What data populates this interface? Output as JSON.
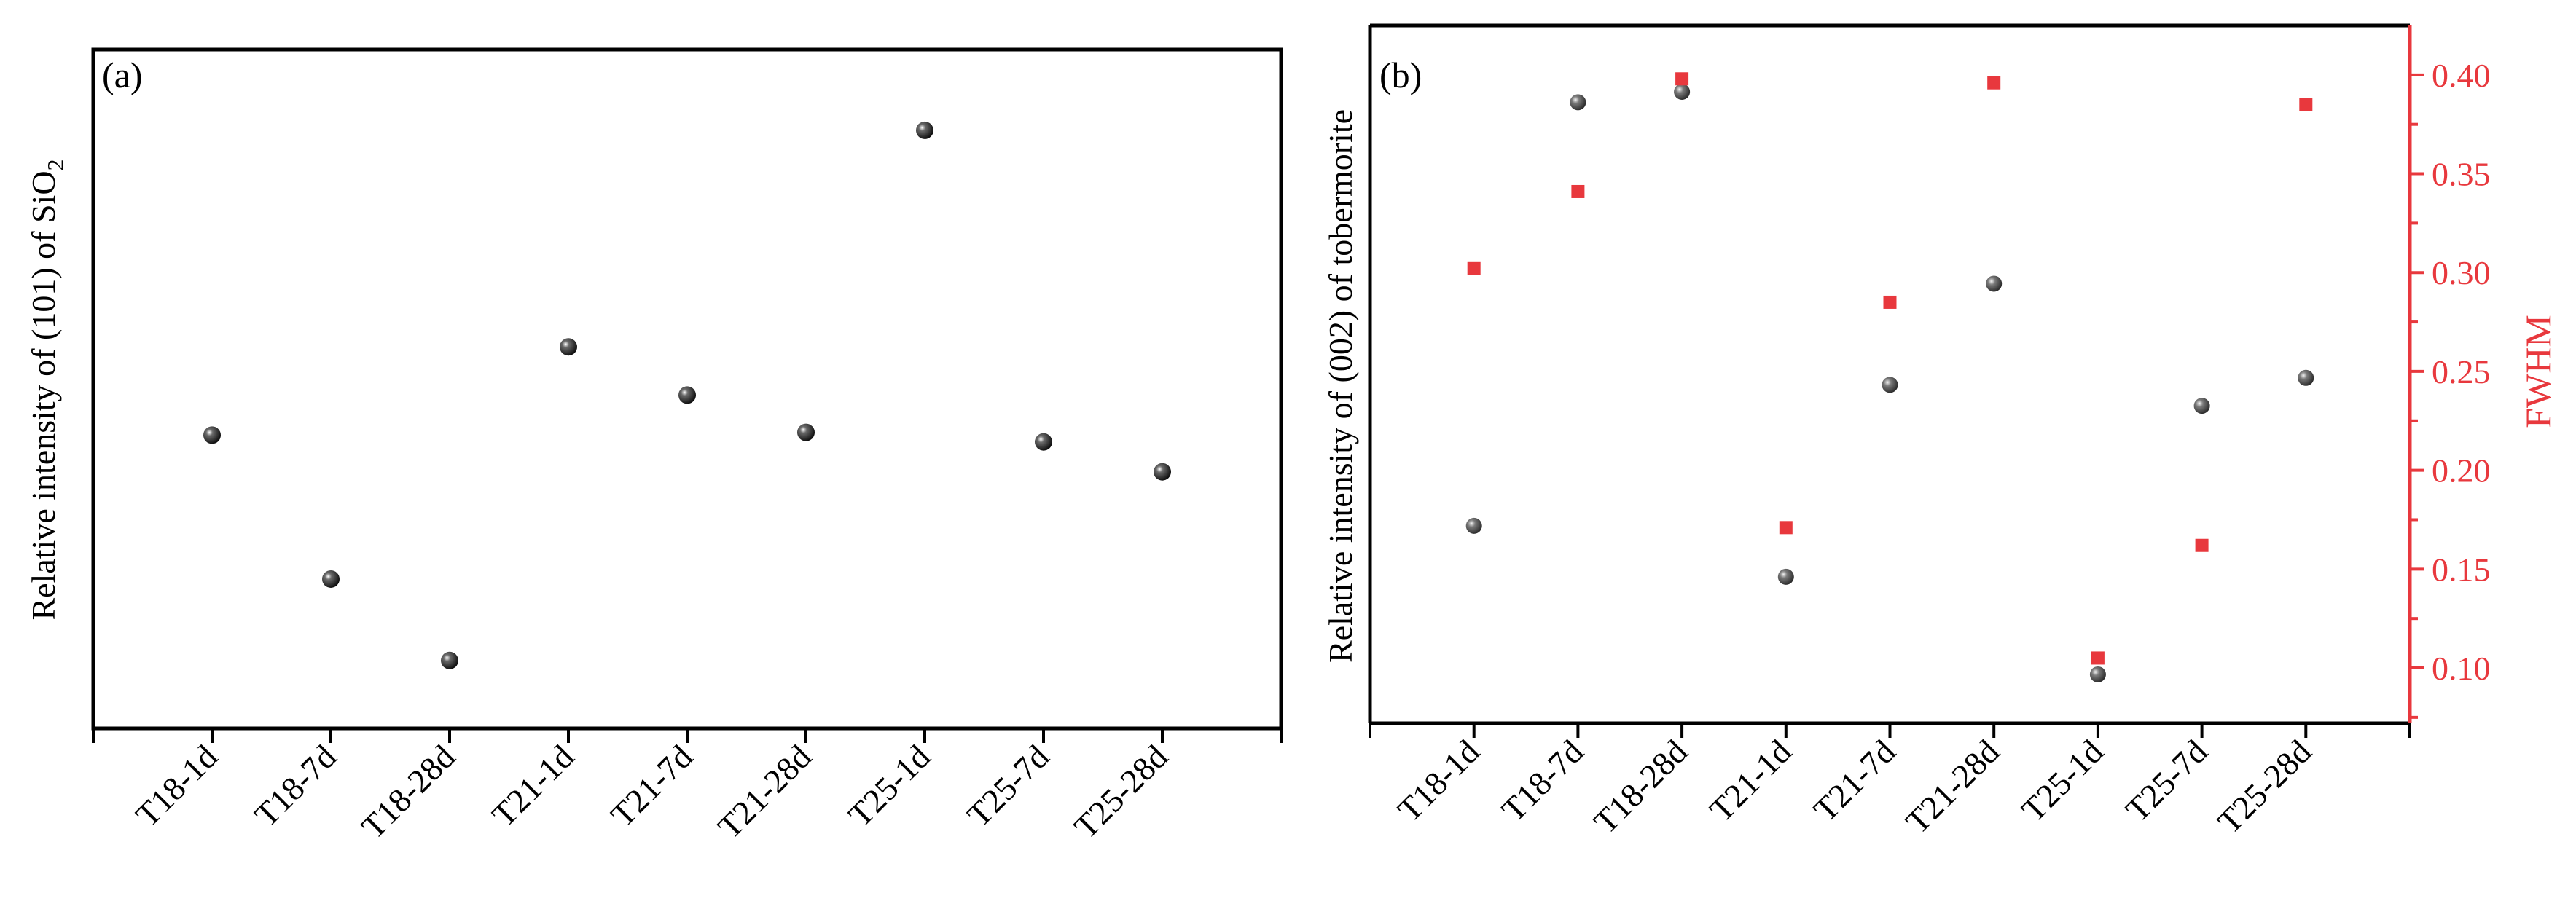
{
  "chart_data": [
    {
      "type": "scatter",
      "panel_label": "(a)",
      "title": "",
      "xlabel": "",
      "ylabel": "Relative intensity of (101) of  SiO",
      "ylabel_subscript": "2",
      "categories": [
        "T18-1d",
        "T18-7d",
        "T18-28d",
        "T21-1d",
        "T21-7d",
        "T21-28d",
        "T25-1d",
        "T25-7d",
        "T25-28d"
      ],
      "ylim": [
        0,
        1
      ],
      "y_ticks_shown": false,
      "grid": false,
      "legend": "none",
      "series": [
        {
          "values": [
            0.432,
            0.22,
            0.1,
            0.562,
            0.491,
            0.436,
            0.881,
            0.422,
            0.378
          ],
          "marker": "sphere",
          "color": "#000000"
        }
      ]
    },
    {
      "type": "scatter",
      "panel_label": "(b)",
      "title": "",
      "xlabel": "",
      "ylabel": "Relative intensity of (002) of  tobermorite",
      "y2label": "FWHM",
      "y2_color": "#e8383d",
      "categories": [
        "T18-1d",
        "T18-7d",
        "T18-28d",
        "T21-1d",
        "T21-7d",
        "T21-28d",
        "T25-1d",
        "T25-7d",
        "T25-28d"
      ],
      "ylim": [
        0,
        1
      ],
      "y_ticks_shown": false,
      "y2lim": [
        0.072,
        0.425
      ],
      "y2ticks": [
        "0.10",
        "0.15",
        "0.20",
        "0.25",
        "0.30",
        "0.35",
        "0.40"
      ],
      "grid": false,
      "legend": "none",
      "series": [
        {
          "axis": "left",
          "marker": "sphere",
          "color": "#4a4a4a",
          "values": [
            0.283,
            0.89,
            0.905,
            0.21,
            0.485,
            0.63,
            0.07,
            0.455,
            0.495
          ]
        },
        {
          "axis": "right",
          "marker": "square",
          "color": "#e8383d",
          "values": [
            0.302,
            0.341,
            0.398,
            0.171,
            0.285,
            0.396,
            0.105,
            0.162,
            0.385
          ]
        }
      ]
    }
  ]
}
